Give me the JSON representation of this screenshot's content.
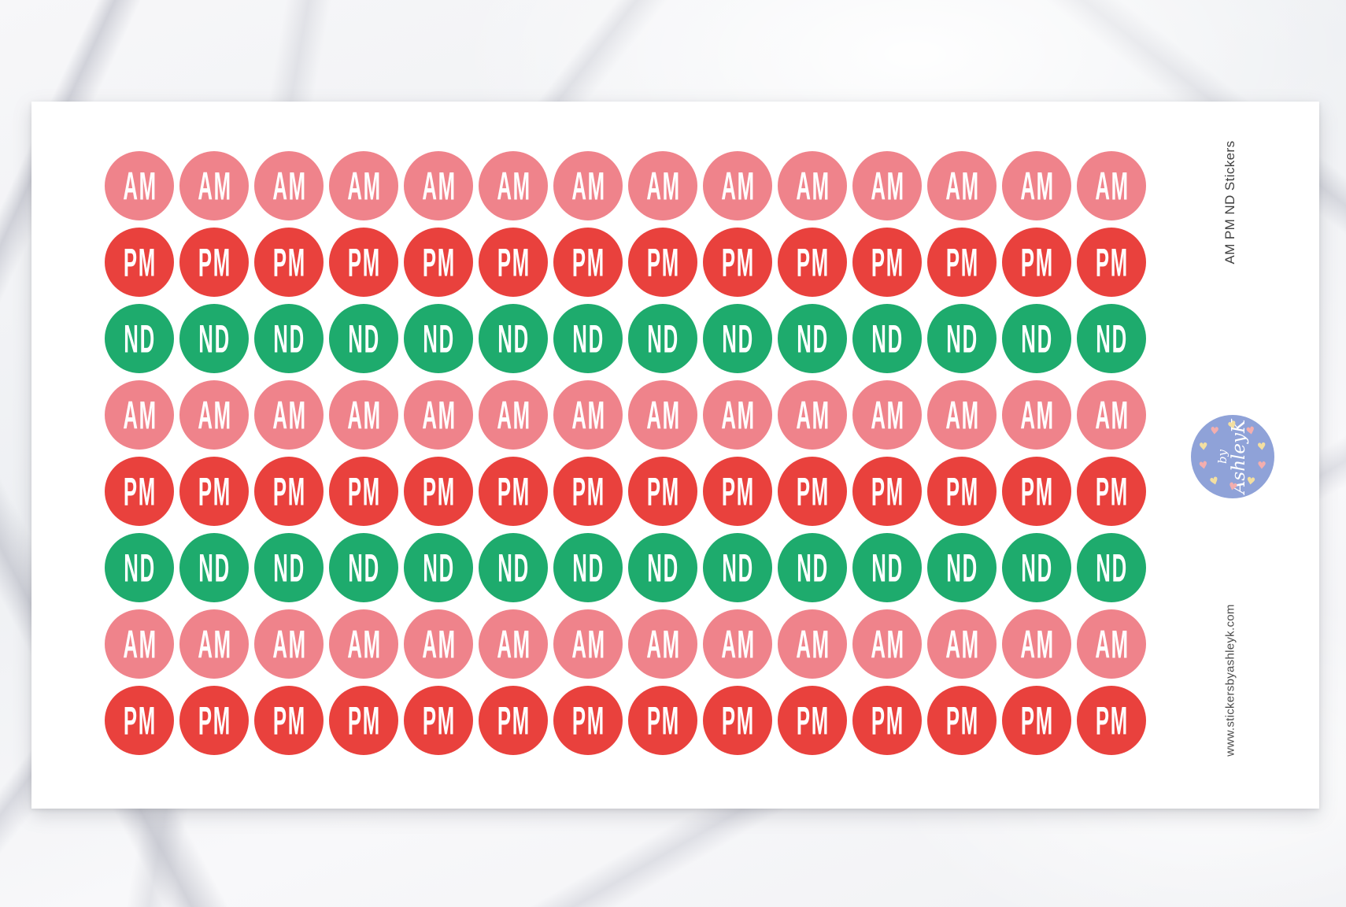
{
  "product": {
    "title": "AM PM ND Stickers",
    "website": "www.stickersbyashleyk.com"
  },
  "badge": {
    "line1": "by",
    "line2": "AshleyK"
  },
  "sheet": {
    "columns": 14,
    "rows": [
      {
        "label": "AM",
        "color_key": "am"
      },
      {
        "label": "PM",
        "color_key": "pm"
      },
      {
        "label": "ND",
        "color_key": "nd"
      },
      {
        "label": "AM",
        "color_key": "am"
      },
      {
        "label": "PM",
        "color_key": "pm"
      },
      {
        "label": "ND",
        "color_key": "nd"
      },
      {
        "label": "AM",
        "color_key": "am"
      },
      {
        "label": "PM",
        "color_key": "pm"
      }
    ]
  },
  "colors": {
    "am": "#EF838B",
    "pm": "#E9413D",
    "nd": "#1EAB6D",
    "sticker_text": "#FFFFFF",
    "badge_background": "#8FA2D8",
    "badge_text": "#FFFFFF",
    "heart_yellow": "#F3DFA1",
    "heart_pink": "#F3AEAE",
    "title_text": "#414141",
    "website_text": "#4D4D4D"
  }
}
